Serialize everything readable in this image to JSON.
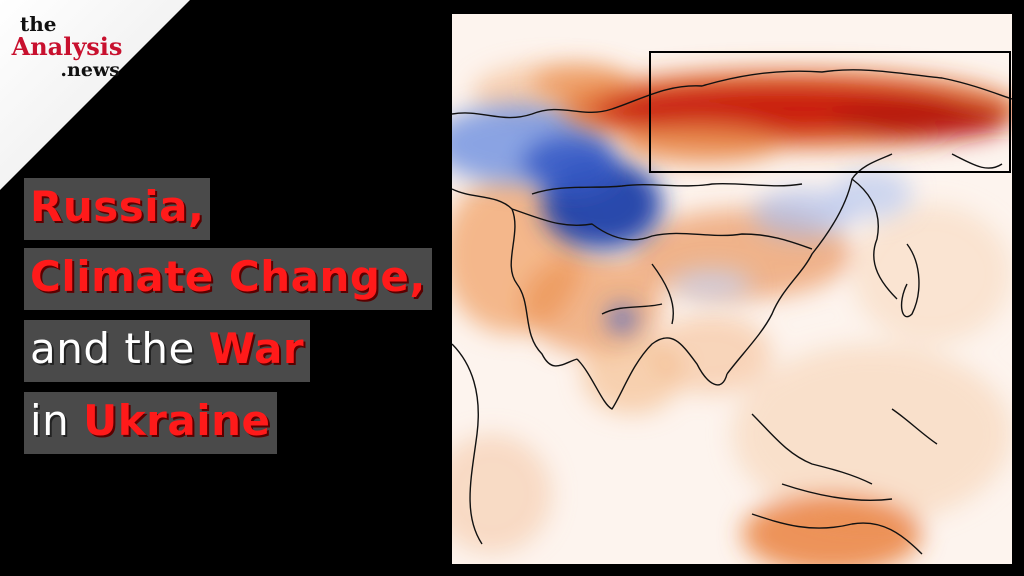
{
  "logo": {
    "line1": "the",
    "line2": "Analysis",
    "line3": ".news"
  },
  "title": {
    "line1": {
      "red": "Russia,"
    },
    "line2": {
      "red": "Climate Change,"
    },
    "line3": {
      "white": "and the ",
      "red": "War"
    },
    "line4": {
      "white": "in ",
      "red": "Ukraine"
    }
  },
  "colors": {
    "background": "#000000",
    "title_red": "#ff1a1a",
    "title_box": "#4a4a4a",
    "logo_red": "#c8102e",
    "warm_anomaly": "#c81a0a",
    "cold_anomaly": "#1f3fa8"
  },
  "map": {
    "subject": "temperature-anomaly-map-asia",
    "highlight_box": "siberia-region-outline"
  }
}
